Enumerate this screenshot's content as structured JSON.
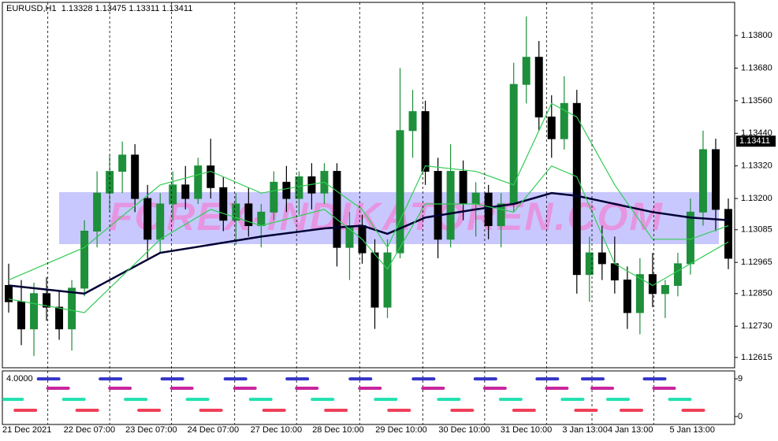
{
  "chart_data": {
    "type": "candlestick",
    "symbol": "EURUSD,H1",
    "ohlc": [
      1.13328,
      1.13475,
      1.13311,
      1.13411
    ],
    "watermark": "FOREX-INDIKATOREN.COM",
    "up_color": "#1e8f3a",
    "down_color": "#000000",
    "xlim": [
      -0.5,
      57.5
    ],
    "xticks": [
      {
        "value": -0.5,
        "label": "21 Dec 2021"
      },
      {
        "value": 3.1,
        "label": "22 Dec 07:00"
      },
      {
        "value": 8,
        "label": "23 Dec 07:00"
      },
      {
        "value": 12.9,
        "label": "24 Dec 07:00"
      },
      {
        "value": 17.9,
        "label": "27 Dec 10:00"
      },
      {
        "value": 22.8,
        "label": "28 Dec 10:00"
      },
      {
        "value": 27.8,
        "label": "29 Dec 10:00"
      },
      {
        "value": 32.8,
        "label": "30 Dec 10:00"
      },
      {
        "value": 37.7,
        "label": "31 Dec 10:00"
      },
      {
        "value": 42.6,
        "label": "3 Jan 13:00"
      },
      {
        "value": 46.2,
        "label": "4 Jan 13:00"
      },
      {
        "value": 51.1,
        "label": "5 Jan 13:00"
      }
    ],
    "ylim": [
      1.12577,
      1.13922
    ],
    "yticks": [
      {
        "value": 1.138,
        "label": "1.13800"
      },
      {
        "value": 1.1368,
        "label": "1.13680"
      },
      {
        "value": 1.1356,
        "label": "1.13560"
      },
      {
        "value": 1.1344,
        "label": "1.13440"
      },
      {
        "value": 1.1332,
        "label": "1.13320"
      },
      {
        "value": 1.132,
        "label": "1.13200"
      },
      1.13085,
      1.12965,
      {
        "value": 1.1285,
        "label": "1.12850"
      },
      {
        "value": 1.1273,
        "label": "1.12730"
      },
      1.12615
    ],
    "open": [
      1.1288,
      1.1282,
      1.1272,
      1.1285,
      1.128,
      1.1272,
      1.1287,
      1.1308,
      1.1322,
      1.133,
      1.1336,
      1.132,
      1.1305,
      1.1318,
      1.1325,
      1.132,
      1.1332,
      1.1324,
      1.1312,
      1.1318,
      1.131,
      1.1315,
      1.1326,
      1.132,
      1.1328,
      1.1322,
      1.133,
      1.1302,
      1.131,
      1.13,
      1.128,
      1.13,
      1.1345,
      1.1352,
      1.133,
      1.1305,
      1.133,
      1.1318,
      1.1322,
      1.131,
      1.1318,
      1.1362,
      1.1372,
      1.135,
      1.1342,
      1.1355,
      1.1292,
      1.13,
      1.1296,
      1.129,
      1.1278,
      1.1292,
      1.1285,
      1.1288,
      1.1296,
      1.1315,
      1.1338,
      1.1316
    ],
    "high": [
      1.1296,
      1.129,
      1.1289,
      1.1291,
      1.1286,
      1.129,
      1.1312,
      1.133,
      1.1336,
      1.1341,
      1.134,
      1.1325,
      1.1322,
      1.133,
      1.1332,
      1.1335,
      1.1342,
      1.1328,
      1.1322,
      1.1324,
      1.1318,
      1.133,
      1.1332,
      1.133,
      1.1333,
      1.1333,
      1.1333,
      1.1315,
      1.1314,
      1.1305,
      1.1305,
      1.1368,
      1.136,
      1.1356,
      1.1335,
      1.134,
      1.1334,
      1.1326,
      1.1325,
      1.1322,
      1.137,
      1.1387,
      1.1378,
      1.1358,
      1.1365,
      1.136,
      1.1306,
      1.131,
      1.1306,
      1.1295,
      1.1298,
      1.13,
      1.129,
      1.13,
      1.132,
      1.1345,
      1.1342,
      1.132
    ],
    "low": [
      1.1278,
      1.1266,
      1.1262,
      1.1275,
      1.1268,
      1.1264,
      1.1284,
      1.1302,
      1.1315,
      1.1322,
      1.1315,
      1.1298,
      1.13,
      1.1312,
      1.1316,
      1.1318,
      1.132,
      1.1308,
      1.1303,
      1.1306,
      1.1302,
      1.1312,
      1.1315,
      1.1314,
      1.1316,
      1.1318,
      1.1295,
      1.129,
      1.1296,
      1.1272,
      1.1276,
      1.1298,
      1.1335,
      1.1325,
      1.1298,
      1.1302,
      1.1312,
      1.1306,
      1.1305,
      1.1302,
      1.1315,
      1.1355,
      1.1345,
      1.1335,
      1.1338,
      1.1285,
      1.1282,
      1.129,
      1.1285,
      1.1272,
      1.127,
      1.128,
      1.1276,
      1.1284,
      1.1292,
      1.131,
      1.1308,
      1.1294
    ],
    "close": [
      1.1282,
      1.1272,
      1.1285,
      1.128,
      1.1272,
      1.1287,
      1.1308,
      1.1322,
      1.133,
      1.1336,
      1.132,
      1.1305,
      1.1318,
      1.1325,
      1.132,
      1.1332,
      1.1324,
      1.1312,
      1.1318,
      1.131,
      1.1315,
      1.1326,
      1.132,
      1.1328,
      1.1322,
      1.133,
      1.1302,
      1.131,
      1.13,
      1.128,
      1.13,
      1.1345,
      1.1352,
      1.133,
      1.1305,
      1.133,
      1.1318,
      1.1322,
      1.131,
      1.1318,
      1.1362,
      1.1372,
      1.135,
      1.1342,
      1.1355,
      1.1292,
      1.13,
      1.1296,
      1.129,
      1.1278,
      1.1292,
      1.1285,
      1.1288,
      1.1296,
      1.1315,
      1.1338,
      1.1316,
      1.1298
    ],
    "lines": [
      {
        "color": "#000033",
        "x": [
          0,
          6,
          12,
          16,
          20,
          25,
          28,
          30,
          33,
          37,
          40,
          43,
          45,
          48,
          51,
          54,
          57
        ],
        "values": [
          1.1288,
          1.1285,
          1.13,
          1.1303,
          1.1306,
          1.1309,
          1.131,
          1.1307,
          1.1313,
          1.1316,
          1.1318,
          1.1322,
          1.1321,
          1.1318,
          1.1315,
          1.1313,
          1.1312
        ]
      },
      {
        "color": "#33cc55",
        "x": [
          0,
          6,
          12,
          16,
          20,
          25,
          28,
          30,
          33,
          37,
          40,
          43,
          45,
          48,
          51,
          54,
          57
        ],
        "values": [
          1.129,
          1.1302,
          1.1325,
          1.133,
          1.1322,
          1.1326,
          1.1316,
          1.1302,
          1.1332,
          1.133,
          1.1325,
          1.1355,
          1.135,
          1.1325,
          1.1305,
          1.1305,
          1.131
        ]
      },
      {
        "color": "#33cc55",
        "x": [
          0,
          6,
          12,
          16,
          20,
          25,
          28,
          30,
          33,
          37,
          40,
          43,
          45,
          48,
          51,
          54,
          57
        ],
        "values": [
          1.1283,
          1.1278,
          1.1305,
          1.1316,
          1.131,
          1.1316,
          1.1305,
          1.1294,
          1.1318,
          1.1318,
          1.1315,
          1.1332,
          1.1328,
          1.1296,
          1.1288,
          1.1296,
          1.1304
        ]
      }
    ],
    "indicator": {
      "label": "4.0000",
      "ylim": [
        -1.9,
        10.9
      ],
      "yticks": [
        0,
        9
      ],
      "series": [
        {
          "color": "#3535c8",
          "level": 9
        },
        {
          "color": "#c8259c",
          "level": 6.75
        },
        {
          "color": "#22e0b0",
          "level": 4.1
        },
        {
          "color": "#f0405a",
          "level": 1.5
        }
      ]
    }
  }
}
